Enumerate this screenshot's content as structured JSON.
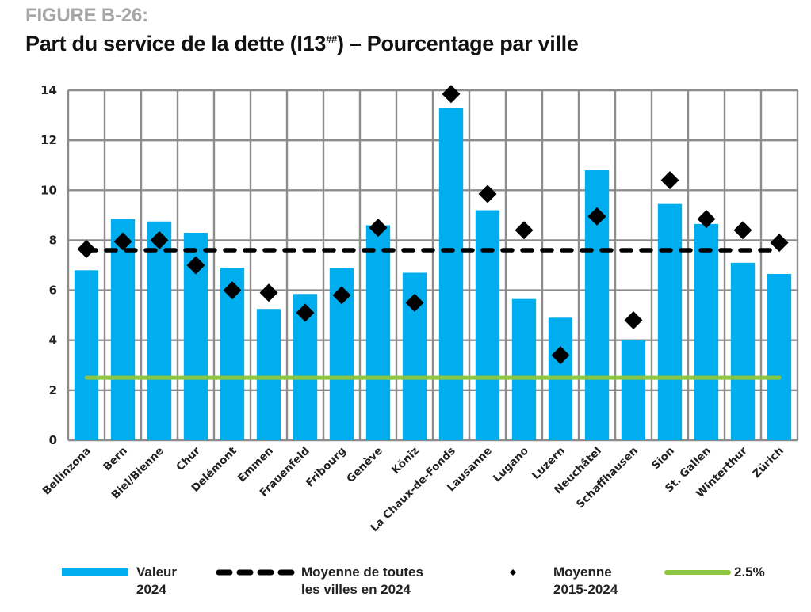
{
  "figure": {
    "label": "FIGURE B-26:",
    "title_main": "Part du service de la dette (I13",
    "title_sup": "##",
    "title_end": ") – Pourcentage par ville"
  },
  "colors": {
    "bar": "#00aeef",
    "mean_line": "#000000",
    "avg_marker": "#000000",
    "threshold": "#8dc63f",
    "grid": "#8c8c8c"
  },
  "chart_data": {
    "type": "bar",
    "title": "Part du service de la dette (I13##) – Pourcentage par ville",
    "xlabel": "",
    "ylabel": "",
    "ylim": [
      0,
      14
    ],
    "yticks": [
      0,
      2,
      4,
      6,
      8,
      10,
      12,
      14
    ],
    "grid": true,
    "legend_position": "bottom",
    "categories": [
      "Bellinzona",
      "Bern",
      "Biel/Bienne",
      "Chur",
      "Delémont",
      "Emmen",
      "Frauenfeld",
      "Fribourg",
      "Genève",
      "Köniz",
      "La Chaux-de-Fonds",
      "Lausanne",
      "Lugano",
      "Luzern",
      "Neuchâtel",
      "Schaffhausen",
      "Sion",
      "St. Gallen",
      "Winterthur",
      "Zürich"
    ],
    "series": [
      {
        "name": "Valeur 2024",
        "kind": "bar",
        "values": [
          6.8,
          8.85,
          8.75,
          8.3,
          6.9,
          5.25,
          5.85,
          6.9,
          8.6,
          6.7,
          13.3,
          9.2,
          5.65,
          4.9,
          10.8,
          4.0,
          9.45,
          8.65,
          7.1,
          6.65
        ]
      },
      {
        "name": "Moyenne 2015-2024",
        "kind": "marker",
        "values": [
          7.65,
          7.95,
          8.0,
          7.0,
          6.0,
          5.9,
          5.1,
          5.8,
          8.5,
          5.5,
          13.85,
          9.85,
          8.4,
          3.4,
          8.95,
          4.8,
          10.4,
          8.85,
          8.4,
          7.9
        ]
      }
    ],
    "reference_lines": [
      {
        "name": "Moyenne de toutes les villes en 2024",
        "value": 7.6,
        "style": "dashed"
      },
      {
        "name": "2.5%",
        "value": 2.5,
        "style": "solid"
      }
    ]
  },
  "legend": [
    {
      "label": "Valeur\n2024",
      "symbol": "bar"
    },
    {
      "label": "Moyenne de toutes\nles villes en 2024",
      "symbol": "dash"
    },
    {
      "label": "Moyenne\n2015-2024",
      "symbol": "diamond"
    },
    {
      "label": "2.5%",
      "symbol": "green-line"
    }
  ]
}
